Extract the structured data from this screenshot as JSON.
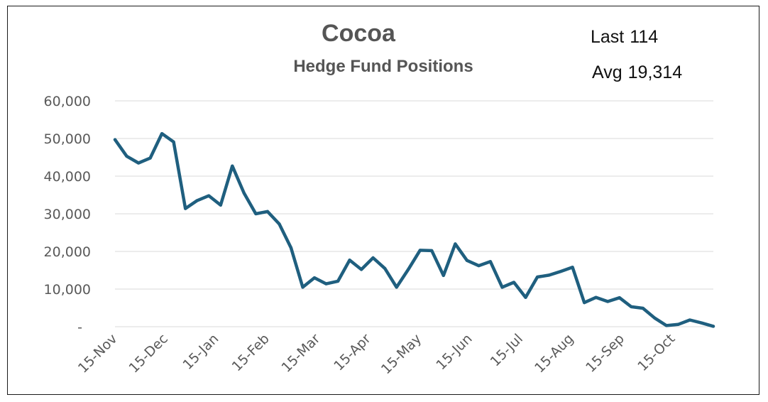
{
  "chart_data": {
    "type": "line",
    "title": "Cocoa",
    "subtitle": "Hedge Fund Positions",
    "annotations": [
      {
        "label": "Last",
        "value": "114"
      },
      {
        "label": "Avg",
        "value": "19,314"
      }
    ],
    "ylim": [
      0,
      60000
    ],
    "y_ticks": [
      "-",
      "10,000",
      "20,000",
      "30,000",
      "40,000",
      "50,000",
      "60,000"
    ],
    "x_ticks": [
      "15-Nov",
      "15-Dec",
      "15-Jan",
      "15-Feb",
      "15-Mar",
      "15-Apr",
      "15-May",
      "15-Jun",
      "15-Jul",
      "15-Aug",
      "15-Sep",
      "15-Oct"
    ],
    "grid": true,
    "legend": "none",
    "line_color": "#1f5f7f",
    "series": [
      {
        "values": [
          49700,
          45300,
          43500,
          44800,
          51300,
          49100,
          31400,
          33500,
          34800,
          32300,
          42700,
          35500,
          30000,
          30600,
          27300,
          21000,
          10500,
          13000,
          11400,
          12100,
          17700,
          15200,
          18300,
          15500,
          10500,
          15200,
          20300,
          20200,
          13600,
          22000,
          17600,
          16200,
          17300,
          10500,
          11800,
          7800,
          13200,
          13700,
          14700,
          15800,
          6400,
          7800,
          6700,
          7700,
          5300,
          4900,
          2300,
          300,
          600,
          1800,
          1000,
          114
        ]
      }
    ]
  }
}
